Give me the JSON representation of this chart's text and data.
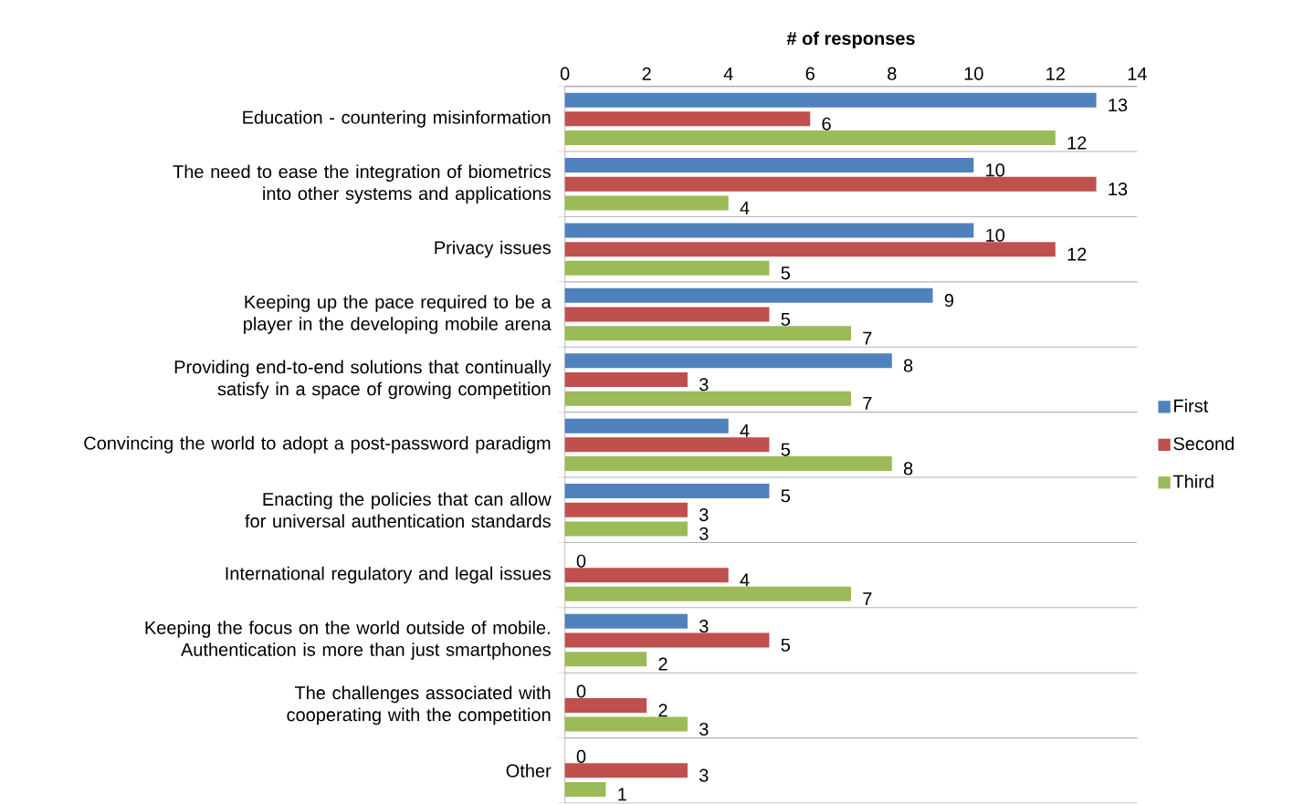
{
  "chart_data": {
    "type": "bar",
    "orientation": "horizontal",
    "xlabel": "# of responses",
    "categories": [
      "Education - countering misinformation",
      "The need to ease the integration of biometrics into other systems and applications",
      "Privacy issues",
      "Keeping up the pace required to be a player in the developing mobile arena",
      "Providing end-to-end solutions that continually satisfy in a space of growing competition",
      "Convincing the world to adopt a post-password paradigm",
      "Enacting the policies that can allow for universal authentication standards",
      "International regulatory and legal issues",
      "Keeping the focus on the world outside of mobile. Authentication is more than just smartphones",
      "The challenges associated with cooperating with the competition",
      "Other"
    ],
    "series": [
      {
        "name": "First",
        "color": "#4f81bd",
        "values": [
          13,
          10,
          10,
          9,
          8,
          4,
          5,
          0,
          3,
          0,
          0
        ]
      },
      {
        "name": "Second",
        "color": "#c0504d",
        "values": [
          6,
          13,
          12,
          5,
          3,
          5,
          3,
          4,
          5,
          2,
          3
        ]
      },
      {
        "name": "Third",
        "color": "#9bbb59",
        "values": [
          12,
          4,
          5,
          7,
          7,
          8,
          3,
          7,
          2,
          3,
          1
        ]
      }
    ],
    "xlim": [
      0,
      14
    ],
    "xticks": [
      0,
      2,
      4,
      6,
      8,
      10,
      12,
      14
    ],
    "grid": "y",
    "legend": "right",
    "data_labels": true
  }
}
